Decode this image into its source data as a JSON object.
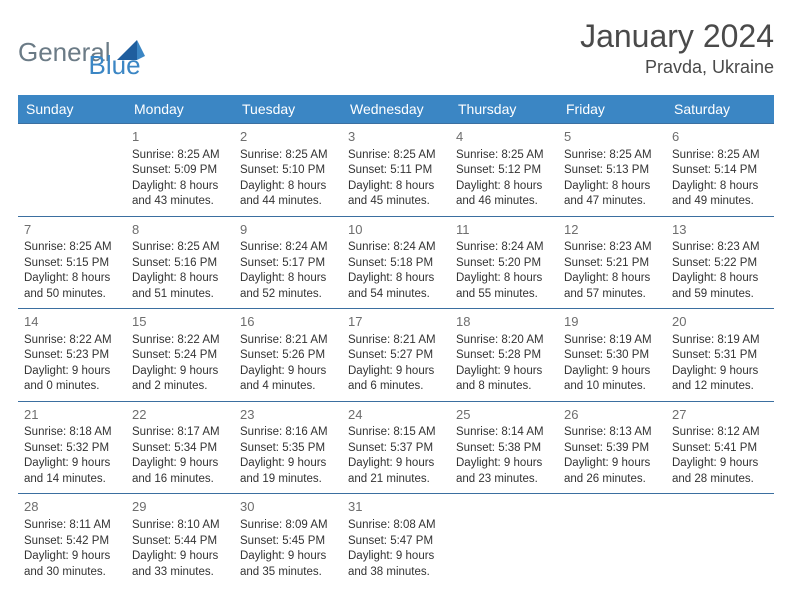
{
  "logo": {
    "general": "General",
    "blue": "Blue"
  },
  "title": "January 2024",
  "location": "Pravda, Ukraine",
  "colors": {
    "header_bg": "#3b86c4",
    "header_text": "#ffffff",
    "row_border": "#3b6fa0",
    "text": "#333333",
    "logo_gray": "#6b7b86",
    "logo_blue": "#3b86c4"
  },
  "weekdays": [
    "Sunday",
    "Monday",
    "Tuesday",
    "Wednesday",
    "Thursday",
    "Friday",
    "Saturday"
  ],
  "weeks": [
    [
      null,
      {
        "d": "1",
        "rise": "8:25 AM",
        "set": "5:09 PM",
        "dl": "8 hours and 43 minutes."
      },
      {
        "d": "2",
        "rise": "8:25 AM",
        "set": "5:10 PM",
        "dl": "8 hours and 44 minutes."
      },
      {
        "d": "3",
        "rise": "8:25 AM",
        "set": "5:11 PM",
        "dl": "8 hours and 45 minutes."
      },
      {
        "d": "4",
        "rise": "8:25 AM",
        "set": "5:12 PM",
        "dl": "8 hours and 46 minutes."
      },
      {
        "d": "5",
        "rise": "8:25 AM",
        "set": "5:13 PM",
        "dl": "8 hours and 47 minutes."
      },
      {
        "d": "6",
        "rise": "8:25 AM",
        "set": "5:14 PM",
        "dl": "8 hours and 49 minutes."
      }
    ],
    [
      {
        "d": "7",
        "rise": "8:25 AM",
        "set": "5:15 PM",
        "dl": "8 hours and 50 minutes."
      },
      {
        "d": "8",
        "rise": "8:25 AM",
        "set": "5:16 PM",
        "dl": "8 hours and 51 minutes."
      },
      {
        "d": "9",
        "rise": "8:24 AM",
        "set": "5:17 PM",
        "dl": "8 hours and 52 minutes."
      },
      {
        "d": "10",
        "rise": "8:24 AM",
        "set": "5:18 PM",
        "dl": "8 hours and 54 minutes."
      },
      {
        "d": "11",
        "rise": "8:24 AM",
        "set": "5:20 PM",
        "dl": "8 hours and 55 minutes."
      },
      {
        "d": "12",
        "rise": "8:23 AM",
        "set": "5:21 PM",
        "dl": "8 hours and 57 minutes."
      },
      {
        "d": "13",
        "rise": "8:23 AM",
        "set": "5:22 PM",
        "dl": "8 hours and 59 minutes."
      }
    ],
    [
      {
        "d": "14",
        "rise": "8:22 AM",
        "set": "5:23 PM",
        "dl": "9 hours and 0 minutes."
      },
      {
        "d": "15",
        "rise": "8:22 AM",
        "set": "5:24 PM",
        "dl": "9 hours and 2 minutes."
      },
      {
        "d": "16",
        "rise": "8:21 AM",
        "set": "5:26 PM",
        "dl": "9 hours and 4 minutes."
      },
      {
        "d": "17",
        "rise": "8:21 AM",
        "set": "5:27 PM",
        "dl": "9 hours and 6 minutes."
      },
      {
        "d": "18",
        "rise": "8:20 AM",
        "set": "5:28 PM",
        "dl": "9 hours and 8 minutes."
      },
      {
        "d": "19",
        "rise": "8:19 AM",
        "set": "5:30 PM",
        "dl": "9 hours and 10 minutes."
      },
      {
        "d": "20",
        "rise": "8:19 AM",
        "set": "5:31 PM",
        "dl": "9 hours and 12 minutes."
      }
    ],
    [
      {
        "d": "21",
        "rise": "8:18 AM",
        "set": "5:32 PM",
        "dl": "9 hours and 14 minutes."
      },
      {
        "d": "22",
        "rise": "8:17 AM",
        "set": "5:34 PM",
        "dl": "9 hours and 16 minutes."
      },
      {
        "d": "23",
        "rise": "8:16 AM",
        "set": "5:35 PM",
        "dl": "9 hours and 19 minutes."
      },
      {
        "d": "24",
        "rise": "8:15 AM",
        "set": "5:37 PM",
        "dl": "9 hours and 21 minutes."
      },
      {
        "d": "25",
        "rise": "8:14 AM",
        "set": "5:38 PM",
        "dl": "9 hours and 23 minutes."
      },
      {
        "d": "26",
        "rise": "8:13 AM",
        "set": "5:39 PM",
        "dl": "9 hours and 26 minutes."
      },
      {
        "d": "27",
        "rise": "8:12 AM",
        "set": "5:41 PM",
        "dl": "9 hours and 28 minutes."
      }
    ],
    [
      {
        "d": "28",
        "rise": "8:11 AM",
        "set": "5:42 PM",
        "dl": "9 hours and 30 minutes."
      },
      {
        "d": "29",
        "rise": "8:10 AM",
        "set": "5:44 PM",
        "dl": "9 hours and 33 minutes."
      },
      {
        "d": "30",
        "rise": "8:09 AM",
        "set": "5:45 PM",
        "dl": "9 hours and 35 minutes."
      },
      {
        "d": "31",
        "rise": "8:08 AM",
        "set": "5:47 PM",
        "dl": "9 hours and 38 minutes."
      },
      null,
      null,
      null
    ]
  ],
  "labels": {
    "sunrise": "Sunrise:",
    "sunset": "Sunset:",
    "daylight": "Daylight:"
  }
}
